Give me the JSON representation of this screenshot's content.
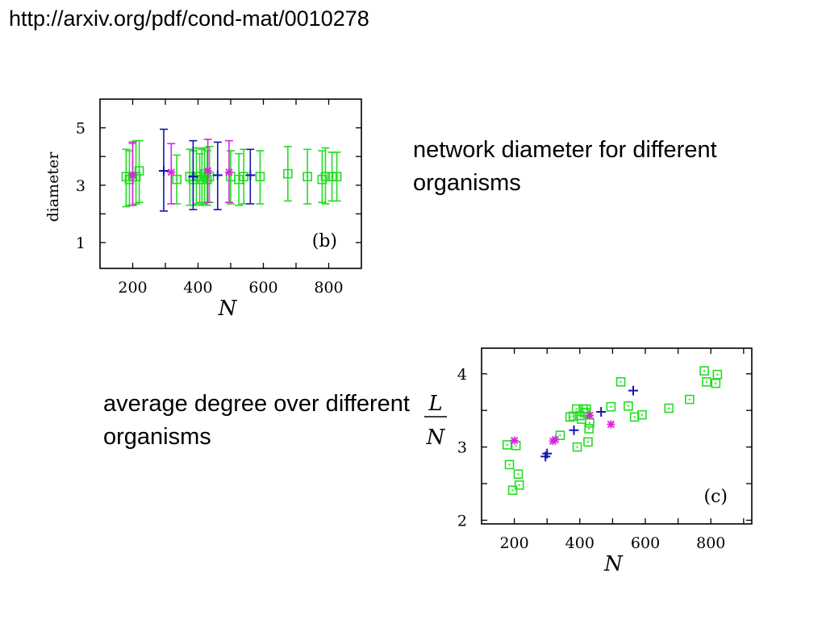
{
  "header": {
    "url_text": "http://arxiv.org/pdf/cond-mat/0010278"
  },
  "captions": {
    "b": "network diameter for different organisms",
    "c": "average degree over different organisms"
  },
  "colors": {
    "green": "#22dd22",
    "blue": "#1414b4",
    "magenta": "#dd22dd"
  },
  "chart_data": [
    {
      "type": "scatter",
      "panel_label": "(b)",
      "xlabel": "N",
      "ylabel": "diameter",
      "xlim": [
        100,
        900
      ],
      "ylim": [
        0.1,
        6.0
      ],
      "x_ticks": [
        200,
        400,
        600,
        800
      ],
      "y_ticks": [
        1,
        3,
        5
      ],
      "error_bars": true,
      "series": [
        {
          "color": "green",
          "marker": "square",
          "points": [
            {
              "x": 180,
              "y": 3.3,
              "lo": 2.25,
              "hi": 4.25
            },
            {
              "x": 190,
              "y": 3.2,
              "lo": 2.3,
              "hi": 4.2
            },
            {
              "x": 200,
              "y": 3.3,
              "lo": 2.3,
              "hi": 4.45
            },
            {
              "x": 210,
              "y": 3.3,
              "lo": 2.35,
              "hi": 4.55
            },
            {
              "x": 220,
              "y": 3.5,
              "lo": 2.4,
              "hi": 4.55
            },
            {
              "x": 335,
              "y": 3.2,
              "lo": 2.35,
              "hi": 4.05
            },
            {
              "x": 375,
              "y": 3.3,
              "lo": 2.3,
              "hi": 4.25
            },
            {
              "x": 385,
              "y": 3.2,
              "lo": 2.3,
              "hi": 4.2
            },
            {
              "x": 395,
              "y": 3.3,
              "lo": 2.35,
              "hi": 4.3
            },
            {
              "x": 405,
              "y": 3.3,
              "lo": 2.4,
              "hi": 4.1
            },
            {
              "x": 412,
              "y": 3.2,
              "lo": 2.3,
              "hi": 4.25
            },
            {
              "x": 420,
              "y": 3.4,
              "lo": 2.35,
              "hi": 4.3
            },
            {
              "x": 428,
              "y": 3.2,
              "lo": 2.3,
              "hi": 4.2
            },
            {
              "x": 435,
              "y": 3.3,
              "lo": 2.4,
              "hi": 4.35
            },
            {
              "x": 500,
              "y": 3.3,
              "lo": 2.35,
              "hi": 4.2
            },
            {
              "x": 525,
              "y": 3.2,
              "lo": 2.3,
              "hi": 4.1
            },
            {
              "x": 540,
              "y": 3.3,
              "lo": 2.35,
              "hi": 4.25
            },
            {
              "x": 590,
              "y": 3.3,
              "lo": 2.35,
              "hi": 4.2
            },
            {
              "x": 675,
              "y": 3.4,
              "lo": 2.45,
              "hi": 4.35
            },
            {
              "x": 735,
              "y": 3.3,
              "lo": 2.35,
              "hi": 4.25
            },
            {
              "x": 780,
              "y": 3.2,
              "lo": 2.4,
              "hi": 4.2
            },
            {
              "x": 790,
              "y": 3.3,
              "lo": 2.35,
              "hi": 4.3
            },
            {
              "x": 810,
              "y": 3.3,
              "lo": 2.45,
              "hi": 4.15
            },
            {
              "x": 825,
              "y": 3.3,
              "lo": 2.45,
              "hi": 4.15
            }
          ]
        },
        {
          "color": "blue",
          "marker": "plus",
          "points": [
            {
              "x": 295,
              "y": 3.5,
              "lo": 2.1,
              "hi": 4.95
            },
            {
              "x": 385,
              "y": 3.3,
              "lo": 2.15,
              "hi": 4.55
            },
            {
              "x": 460,
              "y": 3.35,
              "lo": 2.15,
              "hi": 4.5
            },
            {
              "x": 560,
              "y": 3.35,
              "lo": 2.35,
              "hi": 4.25
            }
          ]
        },
        {
          "color": "magenta",
          "marker": "star",
          "points": [
            {
              "x": 200,
              "y": 3.35,
              "lo": 2.3,
              "hi": 4.5
            },
            {
              "x": 318,
              "y": 3.45,
              "lo": 2.35,
              "hi": 4.45
            },
            {
              "x": 430,
              "y": 3.5,
              "lo": 2.4,
              "hi": 4.6
            },
            {
              "x": 495,
              "y": 3.45,
              "lo": 2.4,
              "hi": 4.55
            }
          ]
        }
      ]
    },
    {
      "type": "scatter",
      "panel_label": "(c)",
      "xlabel": "N",
      "ylabel_numerator": "L",
      "ylabel_denominator": "N",
      "xlim": [
        100,
        925
      ],
      "ylim": [
        1.95,
        4.35
      ],
      "x_ticks": [
        200,
        400,
        600,
        800
      ],
      "y_ticks": [
        2,
        3,
        4
      ],
      "error_bars": false,
      "series": [
        {
          "color": "green",
          "marker": "square",
          "points": [
            {
              "x": 178,
              "y": 3.03
            },
            {
              "x": 185,
              "y": 2.76
            },
            {
              "x": 195,
              "y": 2.41
            },
            {
              "x": 205,
              "y": 3.02
            },
            {
              "x": 212,
              "y": 2.63
            },
            {
              "x": 215,
              "y": 2.48
            },
            {
              "x": 340,
              "y": 3.16
            },
            {
              "x": 370,
              "y": 3.41
            },
            {
              "x": 380,
              "y": 3.42
            },
            {
              "x": 390,
              "y": 3.52
            },
            {
              "x": 392,
              "y": 3.0
            },
            {
              "x": 400,
              "y": 3.43
            },
            {
              "x": 405,
              "y": 3.38
            },
            {
              "x": 410,
              "y": 3.52
            },
            {
              "x": 415,
              "y": 3.47
            },
            {
              "x": 420,
              "y": 3.52
            },
            {
              "x": 425,
              "y": 3.07
            },
            {
              "x": 428,
              "y": 3.25
            },
            {
              "x": 430,
              "y": 3.33
            },
            {
              "x": 495,
              "y": 3.55
            },
            {
              "x": 525,
              "y": 3.89
            },
            {
              "x": 548,
              "y": 3.56
            },
            {
              "x": 567,
              "y": 3.41
            },
            {
              "x": 590,
              "y": 3.44
            },
            {
              "x": 672,
              "y": 3.53
            },
            {
              "x": 735,
              "y": 3.65
            },
            {
              "x": 780,
              "y": 4.04
            },
            {
              "x": 787,
              "y": 3.89
            },
            {
              "x": 815,
              "y": 3.87
            },
            {
              "x": 820,
              "y": 3.99
            }
          ]
        },
        {
          "color": "blue",
          "marker": "plus",
          "points": [
            {
              "x": 295,
              "y": 2.87
            },
            {
              "x": 300,
              "y": 2.91
            },
            {
              "x": 382,
              "y": 3.23
            },
            {
              "x": 465,
              "y": 3.48
            },
            {
              "x": 563,
              "y": 3.77
            }
          ]
        },
        {
          "color": "magenta",
          "marker": "star",
          "points": [
            {
              "x": 200,
              "y": 3.09
            },
            {
              "x": 318,
              "y": 3.08
            },
            {
              "x": 325,
              "y": 3.1
            },
            {
              "x": 430,
              "y": 3.43
            },
            {
              "x": 495,
              "y": 3.31
            }
          ]
        }
      ]
    }
  ]
}
